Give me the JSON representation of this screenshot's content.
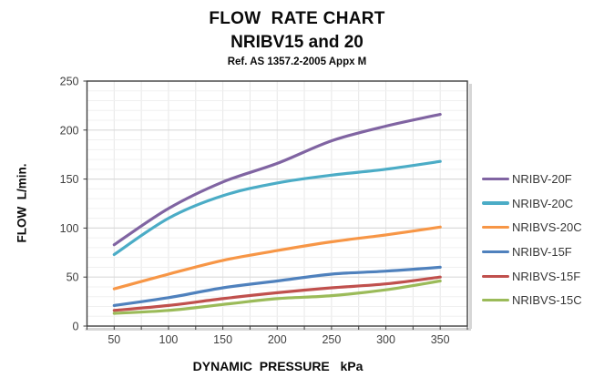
{
  "chart_data": {
    "type": "line",
    "title": "FLOW  RATE CHART",
    "subtitle": "NRIBV15 and 20",
    "reference": "Ref. AS 1357.2-2005 Appx M",
    "xlabel": "DYNAMIC  PRESSURE   kPa",
    "ylabel": "FLOW  L/min.",
    "x": [
      50,
      100,
      150,
      200,
      250,
      300,
      350
    ],
    "x_ticks": [
      50,
      100,
      150,
      200,
      250,
      300,
      350
    ],
    "y_ticks": [
      0,
      50,
      100,
      150,
      200,
      250
    ],
    "xlim": [
      25,
      375
    ],
    "ylim": [
      0,
      250
    ],
    "x_minor": 25,
    "y_minor": 10,
    "y_major": 50,
    "grid": true,
    "legend_position": "right",
    "series": [
      {
        "name": "NRIBV-20F",
        "color": "#8064A2",
        "values": [
          83,
          120,
          147,
          166,
          189,
          204,
          216
        ]
      },
      {
        "name": "NRIBV-20C",
        "color": "#4BACC6",
        "values": [
          73,
          110,
          133,
          146,
          154,
          160,
          168
        ]
      },
      {
        "name": "NRIBVS-20C",
        "color": "#F79646",
        "values": [
          38,
          53,
          67,
          77,
          86,
          93,
          101
        ]
      },
      {
        "name": "NRIBV-15F",
        "color": "#4F81BD",
        "values": [
          21,
          29,
          39,
          46,
          53,
          56,
          60
        ]
      },
      {
        "name": "NRIBVS-15F",
        "color": "#C0504D",
        "values": [
          16,
          21,
          28,
          34,
          39,
          43,
          50
        ]
      },
      {
        "name": "NRIBVS-15C",
        "color": "#9BBB59",
        "values": [
          13,
          16,
          22,
          28,
          31,
          37,
          46
        ]
      }
    ],
    "colors": {
      "plot_border": "#3F3F3F",
      "grid_minor": "#F0F0F0",
      "grid_major": "#DADADA",
      "grid_vertical": "#E7E7E7",
      "tick_label": "#3F3F3F",
      "shadow": "#D6D6D6"
    }
  }
}
